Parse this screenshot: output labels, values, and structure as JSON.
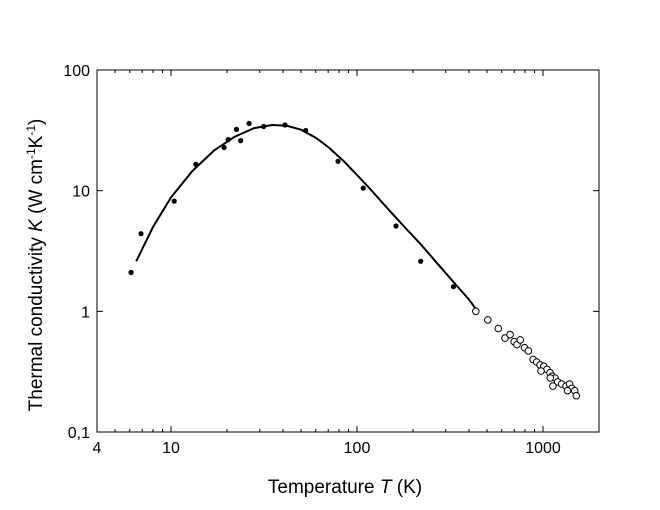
{
  "chart_data": {
    "type": "scatter",
    "title": "",
    "xscale": "log",
    "yscale": "log",
    "xlim": [
      4,
      2000
    ],
    "ylim": [
      0.1,
      100
    ],
    "x_ticks": [
      {
        "value": 4,
        "label": "4"
      },
      {
        "value": 10,
        "label": "10"
      },
      {
        "value": 100,
        "label": "100"
      },
      {
        "value": 1000,
        "label": "1000"
      }
    ],
    "y_ticks": [
      {
        "value": 0.1,
        "label": "0,1"
      },
      {
        "value": 1,
        "label": "1"
      },
      {
        "value": 10,
        "label": "10"
      },
      {
        "value": 100,
        "label": "100"
      }
    ],
    "xlabel": {
      "prefix": "Temperature ",
      "symbol": "T",
      "suffix": " (K)"
    },
    "ylabel": {
      "prefix": "Thermal conductivity ",
      "symbol": "K",
      "suffix": " (W cm",
      "exp1": "-1",
      "mid": "K",
      "exp2": "-1",
      "close": ")"
    },
    "series": [
      {
        "name": "filled",
        "marker": "filled-circle",
        "points": [
          [
            6.1,
            2.1
          ],
          [
            6.9,
            4.4
          ],
          [
            10.4,
            8.2
          ],
          [
            13.6,
            16.5
          ],
          [
            19.3,
            22.8
          ],
          [
            20.3,
            26.5
          ],
          [
            22.5,
            32.2
          ],
          [
            23.7,
            26.0
          ],
          [
            26.3,
            36.0
          ],
          [
            31.5,
            34.0
          ],
          [
            41.0,
            35.0
          ],
          [
            53.0,
            31.5
          ],
          [
            79.0,
            17.5
          ],
          [
            108.0,
            10.5
          ],
          [
            162.0,
            5.1
          ],
          [
            220.0,
            2.6
          ],
          [
            330.0,
            1.6
          ]
        ]
      },
      {
        "name": "open",
        "marker": "open-circle",
        "points": [
          [
            435,
            1.0
          ],
          [
            505,
            0.85
          ],
          [
            575,
            0.72
          ],
          [
            625,
            0.6
          ],
          [
            665,
            0.64
          ],
          [
            700,
            0.56
          ],
          [
            725,
            0.53
          ],
          [
            755,
            0.58
          ],
          [
            795,
            0.5
          ],
          [
            835,
            0.47
          ],
          [
            885,
            0.4
          ],
          [
            925,
            0.38
          ],
          [
            965,
            0.36
          ],
          [
            1010,
            0.35
          ],
          [
            1050,
            0.33
          ],
          [
            1090,
            0.31
          ],
          [
            1120,
            0.29
          ],
          [
            1160,
            0.28
          ],
          [
            1200,
            0.26
          ],
          [
            1260,
            0.25
          ],
          [
            1330,
            0.24
          ],
          [
            1390,
            0.25
          ],
          [
            1430,
            0.23
          ],
          [
            1480,
            0.22
          ],
          [
            1510,
            0.2
          ],
          [
            975,
            0.32
          ],
          [
            1095,
            0.28
          ],
          [
            1130,
            0.24
          ],
          [
            1355,
            0.22
          ]
        ]
      },
      {
        "name": "fit",
        "marker": "line",
        "points": [
          [
            6.5,
            2.6
          ],
          [
            8,
            5.0
          ],
          [
            10,
            8.8
          ],
          [
            13,
            14.5
          ],
          [
            17,
            21.5
          ],
          [
            22,
            28.0
          ],
          [
            28,
            33.0
          ],
          [
            35,
            35.0
          ],
          [
            42,
            34.5
          ],
          [
            50,
            32.0
          ],
          [
            60,
            27.5
          ],
          [
            70,
            23.0
          ],
          [
            85,
            17.5
          ],
          [
            100,
            13.5
          ],
          [
            120,
            10.0
          ],
          [
            150,
            6.8
          ],
          [
            180,
            5.0
          ],
          [
            220,
            3.6
          ],
          [
            270,
            2.5
          ],
          [
            330,
            1.75
          ],
          [
            400,
            1.25
          ],
          [
            435,
            1.05
          ]
        ]
      }
    ]
  }
}
